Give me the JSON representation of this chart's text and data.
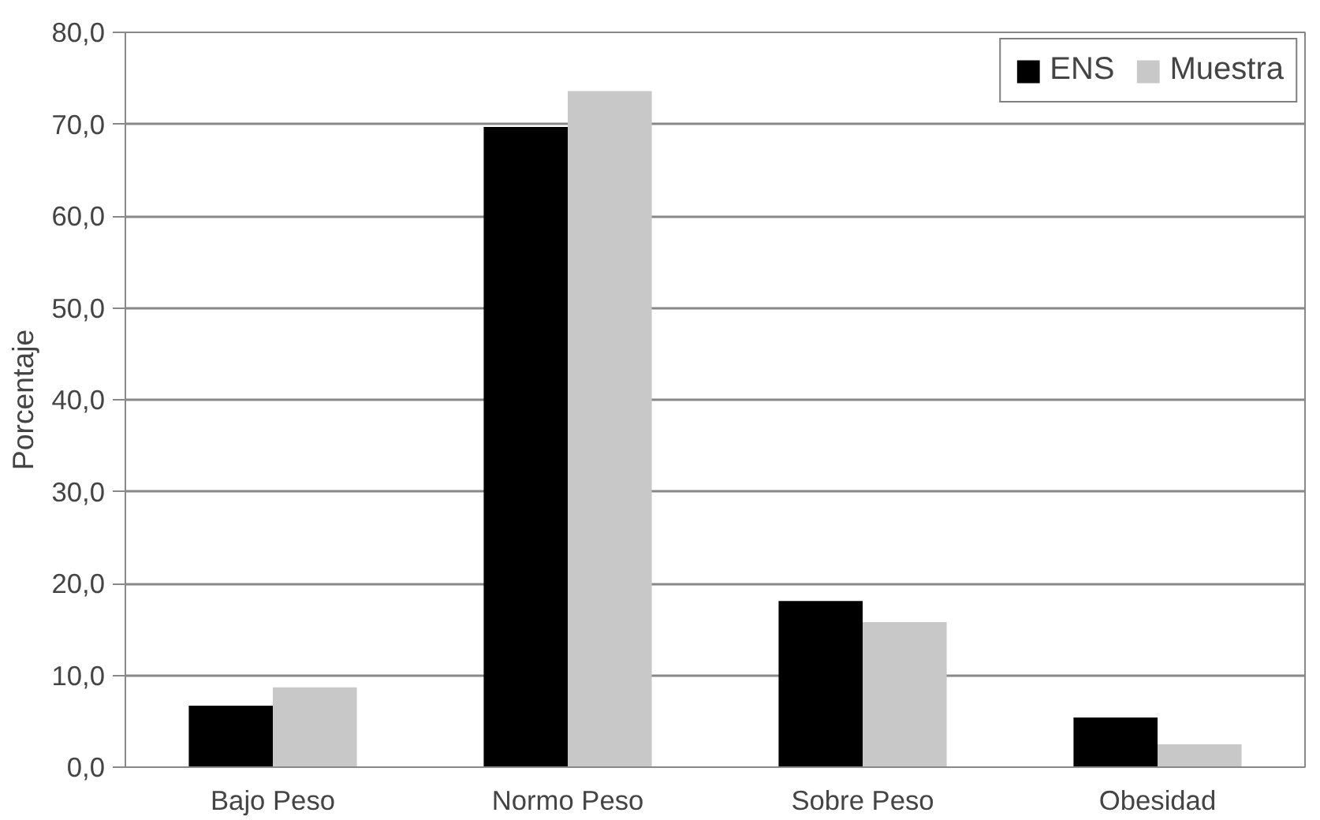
{
  "chart_data": {
    "type": "bar",
    "ylabel": "Porcentaje",
    "categories": [
      "Bajo Peso",
      "Normo Peso",
      "Sobre Peso",
      "Obesidad"
    ],
    "series": [
      {
        "name": "ENS",
        "color": "#000000",
        "values": [
          6.7,
          69.7,
          18.1,
          5.4
        ]
      },
      {
        "name": "Muestra",
        "color": "#c8c8c8",
        "values": [
          8.7,
          73.6,
          15.8,
          2.5
        ]
      }
    ],
    "ylim": [
      0,
      80
    ],
    "yticks": [
      {
        "value": 0,
        "label": "0,0"
      },
      {
        "value": 10,
        "label": "10,0"
      },
      {
        "value": 20,
        "label": "20,0"
      },
      {
        "value": 30,
        "label": "30,0"
      },
      {
        "value": 40,
        "label": "40,0"
      },
      {
        "value": 50,
        "label": "50,0"
      },
      {
        "value": 60,
        "label": "60,0"
      },
      {
        "value": 70,
        "label": "70,0"
      },
      {
        "value": 80,
        "label": "80,0"
      }
    ],
    "grid": "y",
    "legend": "top right"
  }
}
